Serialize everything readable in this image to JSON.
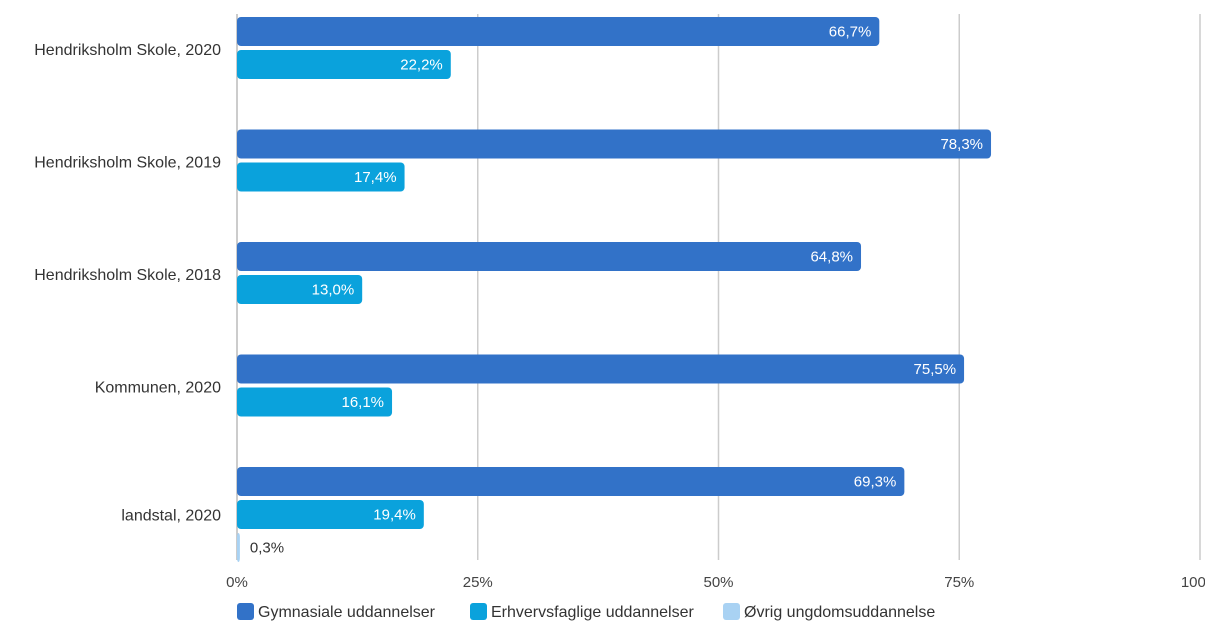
{
  "chart_data": {
    "type": "bar",
    "orientation": "horizontal",
    "categories": [
      "Hendriksholm Skole, 2020",
      "Hendriksholm Skole, 2019",
      "Hendriksholm Skole, 2018",
      "Kommunen, 2020",
      "landstal, 2020"
    ],
    "series": [
      {
        "name": "Gymnasiale uddannelser",
        "color": "#3272C8",
        "values": [
          66.7,
          78.3,
          64.8,
          75.5,
          69.3
        ],
        "labels": [
          "66,7%",
          "78,3%",
          "64,8%",
          "75,5%",
          "69,3%"
        ]
      },
      {
        "name": "Erhvervsfaglige uddannelser",
        "color": "#0AA2DC",
        "values": [
          22.2,
          17.4,
          13.0,
          16.1,
          19.4
        ],
        "labels": [
          "22,2%",
          "17,4%",
          "13,0%",
          "16,1%",
          "19,4%"
        ]
      },
      {
        "name": "Øvrig ungdomsuddannelse",
        "color": "#A9D2F3",
        "values": [
          null,
          null,
          null,
          null,
          0.3
        ],
        "labels": [
          null,
          null,
          null,
          null,
          "0,3%"
        ]
      }
    ],
    "xlim": [
      0,
      100
    ],
    "xticks": [
      "0%",
      "25%",
      "50%",
      "75%",
      "100%"
    ],
    "grid": true,
    "legend_position": "bottom"
  }
}
